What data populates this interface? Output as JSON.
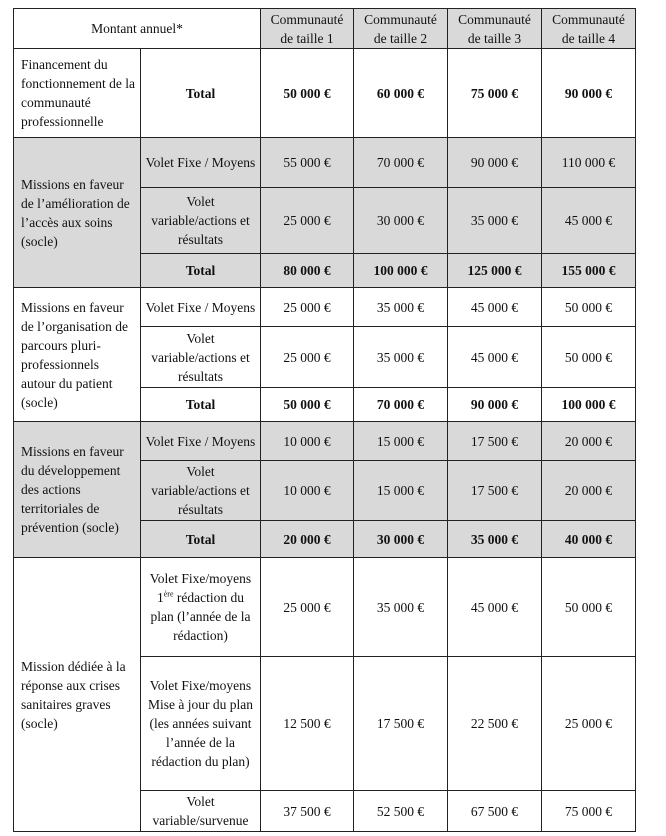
{
  "header": {
    "label": "Montant annuel*",
    "columns": [
      "Communauté de taille 1",
      "Communauté de taille 2",
      "Communauté de taille 3",
      "Communauté de taille 4"
    ]
  },
  "groups": [
    {
      "label": "Financement du fonctionnement de la communauté professionnelle",
      "shaded": false,
      "rows": [
        {
          "label": "Total",
          "bold": true,
          "values": [
            "50 000 €",
            "60 000 €",
            "75 000 €",
            "90 000 €"
          ]
        }
      ]
    },
    {
      "label": "Missions en faveur de l’amélioration de l’accès aux soins (socle)",
      "shaded": true,
      "rows": [
        {
          "label": "Volet Fixe / Moyens",
          "bold": false,
          "values": [
            "55 000 €",
            "70 000 €",
            "90 000 €",
            "110 000 €"
          ]
        },
        {
          "label": "Volet variable/actions et résultats",
          "bold": false,
          "values": [
            "25 000 €",
            "30 000 €",
            "35 000 €",
            "45 000 €"
          ]
        },
        {
          "label": "Total",
          "bold": true,
          "values": [
            "80 000 €",
            "100 000 €",
            "125 000 €",
            "155 000 €"
          ]
        }
      ]
    },
    {
      "label": "Missions en faveur de l’organisation de parcours pluri-professionnels autour du patient (socle)",
      "shaded": false,
      "rows": [
        {
          "label": "Volet Fixe / Moyens",
          "bold": false,
          "values": [
            "25 000 €",
            "35 000 €",
            "45 000 €",
            "50 000 €"
          ]
        },
        {
          "label": "Volet variable/actions et résultats",
          "bold": false,
          "values": [
            "25 000 €",
            "35 000 €",
            "45 000 €",
            "50 000 €"
          ]
        },
        {
          "label": "Total",
          "bold": true,
          "values": [
            "50 000 €",
            "70 000 €",
            "90 000 €",
            "100 000 €"
          ]
        }
      ]
    },
    {
      "label": "Missions en faveur du développement des actions territoriales de prévention (socle)",
      "shaded": true,
      "rows": [
        {
          "label": "Volet Fixe / Moyens",
          "bold": false,
          "values": [
            "10 000 €",
            "15 000 €",
            "17 500 €",
            "20 000 €"
          ]
        },
        {
          "label": "Volet variable/actions et résultats",
          "bold": false,
          "values": [
            "10 000 €",
            "15 000 €",
            "17 500 €",
            "20 000 €"
          ]
        },
        {
          "label": "Total",
          "bold": true,
          "values": [
            "20 000 €",
            "30 000 €",
            "35 000 €",
            "40 000 €"
          ]
        }
      ]
    },
    {
      "label": "Mission dédiée à la réponse aux crises sanitaires graves (socle)",
      "shaded": false,
      "rows": [
        {
          "label": "Volet Fixe/moyens 1",
          "sup": "ère",
          "label_after": " rédaction du plan (l’année de la rédaction)",
          "bold": false,
          "values": [
            "25 000 €",
            "35 000 €",
            "45 000 €",
            "50 000 €"
          ]
        },
        {
          "label": "Volet Fixe/moyens Mise à jour du plan (les années suivant l’année de la rédaction du plan)",
          "bold": false,
          "values": [
            "12 500 €",
            "17 500 €",
            "22 500 €",
            "25 000 €"
          ]
        },
        {
          "label": "Volet variable/survenue",
          "bold": false,
          "values": [
            "37 500 €",
            "52 500 €",
            "67 500 €",
            "75 000 €"
          ]
        }
      ]
    }
  ]
}
